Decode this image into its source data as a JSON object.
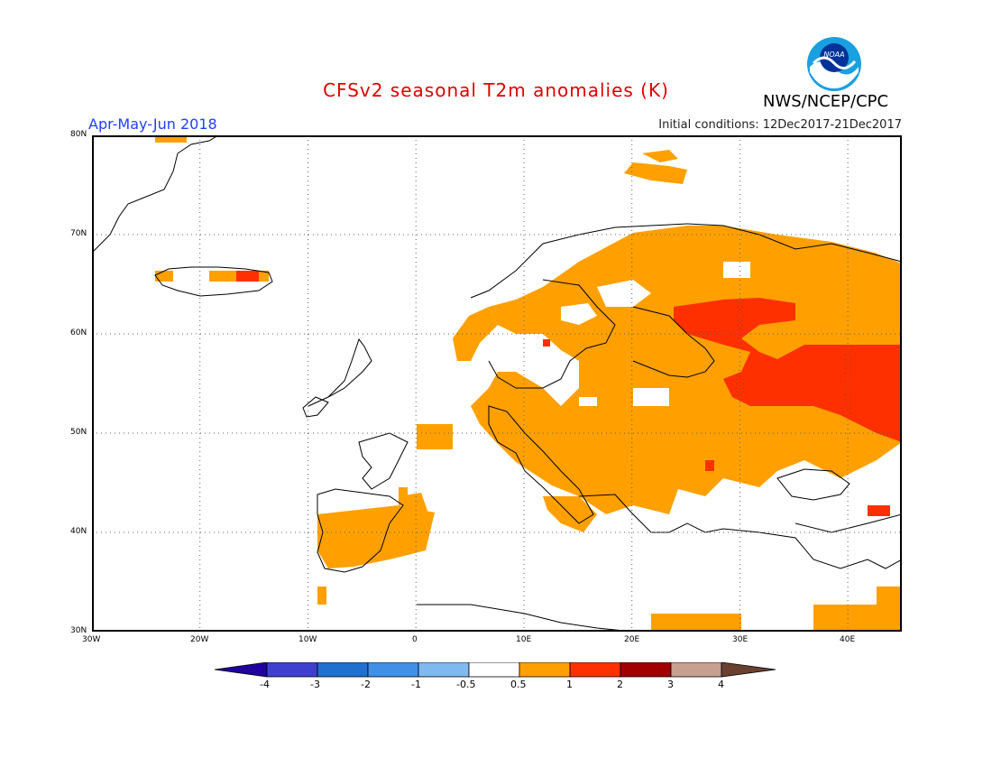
{
  "header": {
    "title": "CFSv2 seasonal T2m anomalies (K)",
    "season": "Apr-May-Jun 2018",
    "initial_conditions": "Initial conditions: 12Dec2017-21Dec2017",
    "agency": "NWS/NCEP/CPC",
    "logo_text": "NOAA"
  },
  "map": {
    "lon_range": [
      -30,
      45
    ],
    "lat_range": [
      30,
      80
    ],
    "lat_labels": [
      "80N",
      "70N",
      "60N",
      "50N",
      "40N",
      "30N"
    ],
    "lon_labels": [
      "30W",
      "20W",
      "10W",
      "0",
      "10E",
      "20E",
      "30E",
      "40E"
    ],
    "grid": "dotted"
  },
  "legend": {
    "labels": [
      "-4",
      "-3",
      "-2",
      "-1",
      "-0.5",
      "0.5",
      "1",
      "2",
      "3",
      "4"
    ],
    "colors": [
      "#2000a0",
      "#4040d0",
      "#2070d0",
      "#4090e8",
      "#80b8f0",
      "#ffffff",
      "#ffa000",
      "#ff3000",
      "#a00000",
      "#c8a090",
      "#6a4030"
    ]
  },
  "anomaly_colors": {
    "0.5-1": "#ffa000",
    "1-2": "#ff3000"
  }
}
